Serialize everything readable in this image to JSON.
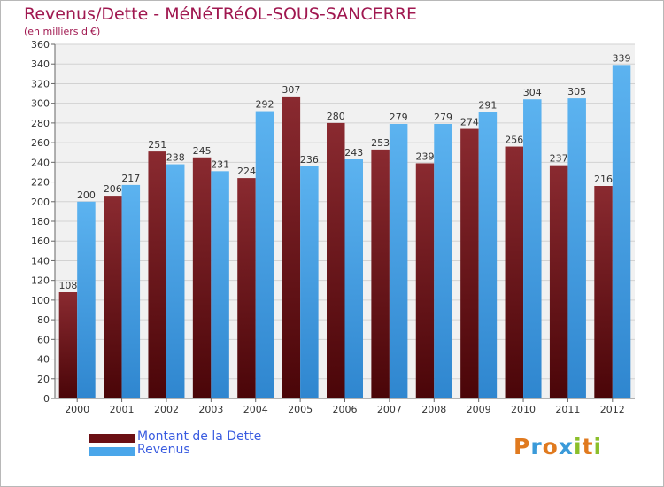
{
  "chart_data": {
    "type": "bar",
    "title": "Revenus/Dette - MéNéTRéOL-SOUS-SANCERRE",
    "subtitle": "(en milliers d'€)",
    "categories": [
      "2000",
      "2001",
      "2002",
      "2003",
      "2004",
      "2005",
      "2006",
      "2007",
      "2008",
      "2009",
      "2010",
      "2011",
      "2012"
    ],
    "series": [
      {
        "name": "Montant de la Dette",
        "values": [
          108,
          206,
          251,
          245,
          224,
          307,
          280,
          253,
          239,
          274,
          256,
          237,
          216
        ],
        "color": "#6b0f14"
      },
      {
        "name": "Revenus",
        "values": [
          200,
          217,
          238,
          231,
          292,
          236,
          243,
          279,
          279,
          291,
          304,
          305,
          339
        ],
        "color": "#4aa6ea"
      }
    ],
    "ylim": [
      0,
      360
    ],
    "yticks": [
      0,
      20,
      40,
      60,
      80,
      100,
      120,
      140,
      160,
      180,
      200,
      220,
      240,
      260,
      280,
      300,
      320,
      340,
      360
    ],
    "grid": true,
    "legend_position": "bottom-left"
  },
  "logo": {
    "letters": [
      "P",
      "r",
      "o",
      "x",
      "i",
      "t",
      "i"
    ],
    "colors": [
      "#e07a1f",
      "#3a9ad9",
      "#e07a1f",
      "#3a9ad9",
      "#8bbf2a",
      "#e07a1f",
      "#8bbf2a"
    ]
  }
}
